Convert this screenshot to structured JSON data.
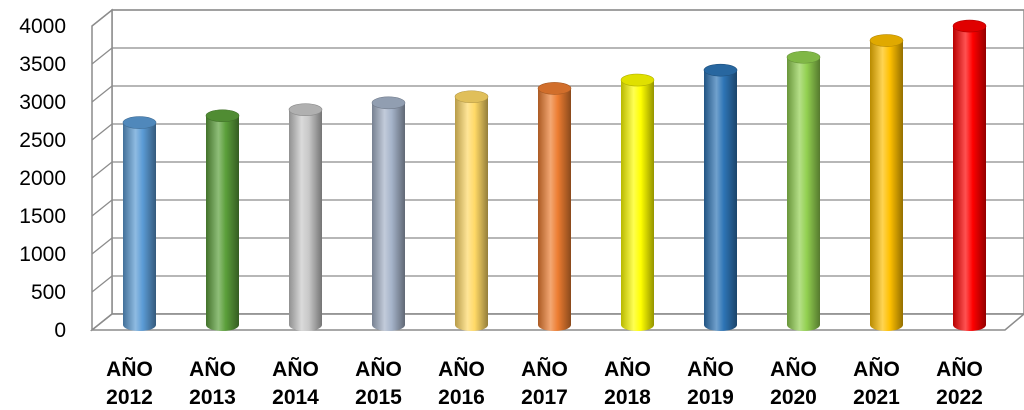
{
  "chart_data": {
    "type": "bar",
    "title": "",
    "xlabel": "",
    "ylabel": "",
    "categories": [
      "AÑO 2012",
      "AÑO 2013",
      "AÑO 2014",
      "AÑO 2015",
      "AÑO 2016",
      "AÑO 2017",
      "AÑO 2018",
      "AÑO 2019",
      "AÑO 2020",
      "AÑO 2021",
      "AÑO 2022"
    ],
    "category_lines": [
      [
        "AÑO",
        "2012"
      ],
      [
        "AÑO",
        "2013"
      ],
      [
        "AÑO",
        "2014"
      ],
      [
        "AÑO",
        "2015"
      ],
      [
        "AÑO",
        "2016"
      ],
      [
        "AÑO",
        "2017"
      ],
      [
        "AÑO",
        "2018"
      ],
      [
        "AÑO",
        "2019"
      ],
      [
        "AÑO",
        "2020"
      ],
      [
        "AÑO",
        "2021"
      ],
      [
        "AÑO",
        "2022"
      ]
    ],
    "values": [
      2650,
      2740,
      2820,
      2910,
      2990,
      3100,
      3210,
      3340,
      3510,
      3730,
      3920
    ],
    "colors": [
      "#5b9bd5",
      "#5b9f3a",
      "#c8c8c8",
      "#a5b3c9",
      "#ffd966",
      "#ed7d31",
      "#ffff00",
      "#2e75b6",
      "#92d050",
      "#ffc000",
      "#ff0000"
    ],
    "ylim": [
      0,
      4000
    ],
    "yticks": [
      "0",
      "500",
      "1000",
      "1500",
      "2000",
      "2500",
      "3000",
      "3500",
      "4000"
    ],
    "grid": true,
    "legend": "none",
    "style": "3d-cylinder"
  }
}
